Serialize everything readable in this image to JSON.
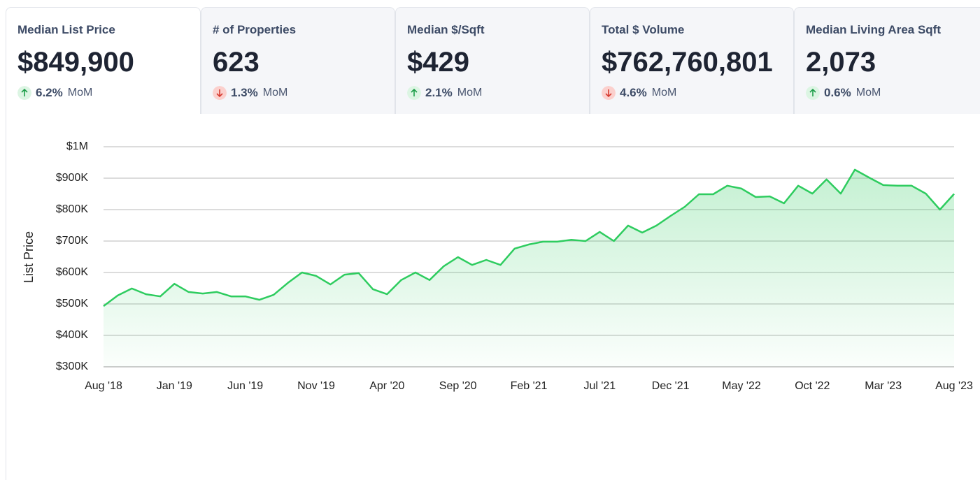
{
  "cards": [
    {
      "label": "Median List Price",
      "value": "$849,900",
      "change": "6.2%",
      "period": "MoM",
      "direction": "up",
      "active": true
    },
    {
      "label": "# of Properties",
      "value": "623",
      "change": "1.3%",
      "period": "MoM",
      "direction": "down",
      "active": false
    },
    {
      "label": "Median $/Sqft",
      "value": "$429",
      "change": "2.1%",
      "period": "MoM",
      "direction": "up",
      "active": false
    },
    {
      "label": "Total $ Volume",
      "value": "$762,760,801",
      "change": "4.6%",
      "period": "MoM",
      "direction": "down",
      "active": false
    },
    {
      "label": "Median Living Area Sqft",
      "value": "2,073",
      "change": "0.6%",
      "period": "MoM",
      "direction": "up",
      "active": false
    }
  ],
  "chart_data": {
    "type": "area",
    "y_label": "List Price",
    "color": "#2ecc5f",
    "grid": true,
    "categories": [
      "Aug '18",
      null,
      null,
      null,
      null,
      "Jan '19",
      null,
      null,
      null,
      null,
      "Jun '19",
      null,
      null,
      null,
      null,
      "Nov '19",
      null,
      null,
      null,
      null,
      "Apr '20",
      null,
      null,
      null,
      null,
      "Sep '20",
      null,
      null,
      null,
      null,
      "Feb '21",
      null,
      null,
      null,
      null,
      "Jul '21",
      null,
      null,
      null,
      null,
      "Dec '21",
      null,
      null,
      null,
      null,
      "May '22",
      null,
      null,
      null,
      null,
      "Oct '22",
      null,
      null,
      null,
      null,
      "Mar '23",
      null,
      null,
      null,
      null,
      "Aug '23"
    ],
    "values": [
      493000,
      527000,
      549000,
      531000,
      524000,
      564000,
      538000,
      533000,
      538000,
      524000,
      524000,
      513000,
      529000,
      567000,
      600000,
      589000,
      562000,
      593000,
      598000,
      547000,
      531000,
      576000,
      600000,
      576000,
      620000,
      649000,
      624000,
      640000,
      624000,
      676000,
      689000,
      698000,
      698000,
      704000,
      700000,
      729000,
      700000,
      749000,
      727000,
      749000,
      780000,
      809000,
      849000,
      849000,
      876000,
      867000,
      840000,
      842000,
      820000,
      876000,
      851000,
      896000,
      851000,
      927000,
      902000,
      878000,
      876000,
      876000,
      851000,
      800000,
      850000
    ],
    "ylim": [
      300000,
      1000000
    ],
    "yticks": [
      {
        "value": 300000,
        "label": "$300K"
      },
      {
        "value": 400000,
        "label": "$400K"
      },
      {
        "value": 500000,
        "label": "$500K"
      },
      {
        "value": 600000,
        "label": "$600K"
      },
      {
        "value": 700000,
        "label": "$700K"
      },
      {
        "value": 800000,
        "label": "$800K"
      },
      {
        "value": 900000,
        "label": "$900K"
      },
      {
        "value": 1000000,
        "label": "$1M"
      }
    ]
  }
}
